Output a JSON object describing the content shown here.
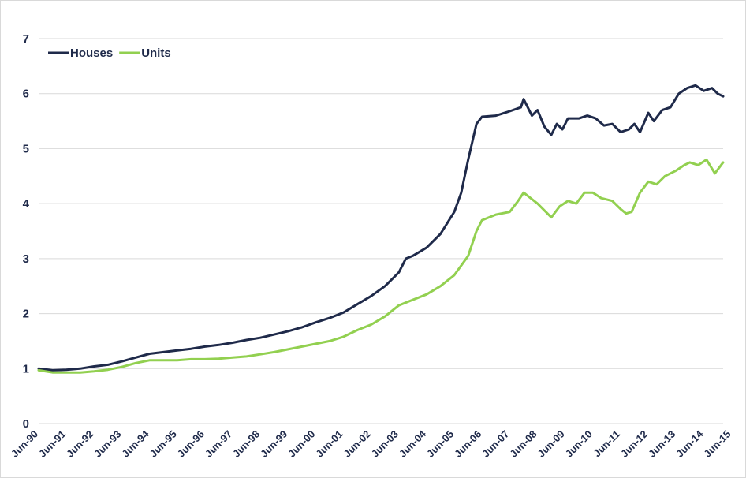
{
  "chart_data": {
    "type": "line",
    "title": "",
    "xlabel": "",
    "ylabel": "",
    "ylim": [
      0,
      7
    ],
    "y_ticks": [
      "0",
      "1",
      "2",
      "3",
      "4",
      "5",
      "6",
      "7"
    ],
    "x_ticks": [
      "Jun-90",
      "Jun-91",
      "Jun-92",
      "Jun-93",
      "Jun-94",
      "Jun-95",
      "Jun-96",
      "Jun-97",
      "Jun-98",
      "Jun-99",
      "Jun-00",
      "Jun-01",
      "Jun-02",
      "Jun-03",
      "Jun-04",
      "Jun-05",
      "Jun-06",
      "Jun-07",
      "Jun-08",
      "Jun-09",
      "Jun-10",
      "Jun-11",
      "Jun-12",
      "Jun-13",
      "Jun-14",
      "Jun-15"
    ],
    "grid": "horizontal",
    "legend_position": "top-left",
    "series": [
      {
        "name": "Houses",
        "color": "#1f2a4a",
        "points": [
          [
            1990.5,
            1.0
          ],
          [
            1991.0,
            0.97
          ],
          [
            1991.5,
            0.98
          ],
          [
            1992.0,
            1.0
          ],
          [
            1992.5,
            1.04
          ],
          [
            1993.0,
            1.07
          ],
          [
            1993.5,
            1.13
          ],
          [
            1994.0,
            1.2
          ],
          [
            1994.5,
            1.27
          ],
          [
            1995.0,
            1.3
          ],
          [
            1995.5,
            1.33
          ],
          [
            1996.0,
            1.36
          ],
          [
            1996.5,
            1.4
          ],
          [
            1997.0,
            1.43
          ],
          [
            1997.5,
            1.47
          ],
          [
            1998.0,
            1.52
          ],
          [
            1998.5,
            1.56
          ],
          [
            1999.0,
            1.62
          ],
          [
            1999.5,
            1.68
          ],
          [
            2000.0,
            1.75
          ],
          [
            2000.5,
            1.84
          ],
          [
            2001.0,
            1.92
          ],
          [
            2001.5,
            2.02
          ],
          [
            2002.0,
            2.17
          ],
          [
            2002.5,
            2.32
          ],
          [
            2003.0,
            2.5
          ],
          [
            2003.5,
            2.75
          ],
          [
            2003.75,
            3.0
          ],
          [
            2004.0,
            3.05
          ],
          [
            2004.5,
            3.2
          ],
          [
            2005.0,
            3.45
          ],
          [
            2005.5,
            3.85
          ],
          [
            2005.75,
            4.2
          ],
          [
            2006.0,
            4.8
          ],
          [
            2006.3,
            5.45
          ],
          [
            2006.5,
            5.58
          ],
          [
            2007.0,
            5.6
          ],
          [
            2007.5,
            5.68
          ],
          [
            2007.9,
            5.75
          ],
          [
            2008.0,
            5.9
          ],
          [
            2008.3,
            5.6
          ],
          [
            2008.5,
            5.7
          ],
          [
            2008.75,
            5.4
          ],
          [
            2009.0,
            5.25
          ],
          [
            2009.2,
            5.45
          ],
          [
            2009.4,
            5.35
          ],
          [
            2009.6,
            5.55
          ],
          [
            2010.0,
            5.55
          ],
          [
            2010.3,
            5.6
          ],
          [
            2010.6,
            5.55
          ],
          [
            2010.9,
            5.42
          ],
          [
            2011.2,
            5.45
          ],
          [
            2011.5,
            5.3
          ],
          [
            2011.8,
            5.35
          ],
          [
            2012.0,
            5.45
          ],
          [
            2012.2,
            5.3
          ],
          [
            2012.5,
            5.65
          ],
          [
            2012.7,
            5.5
          ],
          [
            2013.0,
            5.7
          ],
          [
            2013.3,
            5.75
          ],
          [
            2013.6,
            6.0
          ],
          [
            2013.9,
            6.1
          ],
          [
            2014.2,
            6.15
          ],
          [
            2014.5,
            6.05
          ],
          [
            2014.8,
            6.1
          ],
          [
            2015.0,
            6.0
          ],
          [
            2015.2,
            5.95
          ]
        ]
      },
      {
        "name": "Units",
        "color": "#92d050",
        "points": [
          [
            1990.5,
            0.97
          ],
          [
            1991.0,
            0.93
          ],
          [
            1991.5,
            0.93
          ],
          [
            1992.0,
            0.93
          ],
          [
            1992.5,
            0.95
          ],
          [
            1993.0,
            0.98
          ],
          [
            1993.5,
            1.03
          ],
          [
            1994.0,
            1.1
          ],
          [
            1994.5,
            1.15
          ],
          [
            1995.0,
            1.15
          ],
          [
            1995.5,
            1.15
          ],
          [
            1996.0,
            1.17
          ],
          [
            1996.5,
            1.17
          ],
          [
            1997.0,
            1.18
          ],
          [
            1997.5,
            1.2
          ],
          [
            1998.0,
            1.22
          ],
          [
            1998.5,
            1.26
          ],
          [
            1999.0,
            1.3
          ],
          [
            1999.5,
            1.35
          ],
          [
            2000.0,
            1.4
          ],
          [
            2000.5,
            1.45
          ],
          [
            2001.0,
            1.5
          ],
          [
            2001.5,
            1.58
          ],
          [
            2002.0,
            1.7
          ],
          [
            2002.5,
            1.8
          ],
          [
            2003.0,
            1.95
          ],
          [
            2003.5,
            2.15
          ],
          [
            2004.0,
            2.25
          ],
          [
            2004.5,
            2.35
          ],
          [
            2005.0,
            2.5
          ],
          [
            2005.5,
            2.7
          ],
          [
            2006.0,
            3.05
          ],
          [
            2006.3,
            3.5
          ],
          [
            2006.5,
            3.7
          ],
          [
            2007.0,
            3.8
          ],
          [
            2007.5,
            3.85
          ],
          [
            2007.8,
            4.05
          ],
          [
            2008.0,
            4.2
          ],
          [
            2008.5,
            4.0
          ],
          [
            2008.8,
            3.85
          ],
          [
            2009.0,
            3.75
          ],
          [
            2009.3,
            3.95
          ],
          [
            2009.6,
            4.05
          ],
          [
            2009.9,
            4.0
          ],
          [
            2010.2,
            4.2
          ],
          [
            2010.5,
            4.2
          ],
          [
            2010.8,
            4.1
          ],
          [
            2011.2,
            4.05
          ],
          [
            2011.5,
            3.9
          ],
          [
            2011.7,
            3.82
          ],
          [
            2011.9,
            3.85
          ],
          [
            2012.2,
            4.2
          ],
          [
            2012.5,
            4.4
          ],
          [
            2012.8,
            4.35
          ],
          [
            2013.1,
            4.5
          ],
          [
            2013.5,
            4.6
          ],
          [
            2013.8,
            4.7
          ],
          [
            2014.0,
            4.75
          ],
          [
            2014.3,
            4.7
          ],
          [
            2014.6,
            4.8
          ],
          [
            2014.9,
            4.55
          ],
          [
            2015.2,
            4.75
          ]
        ]
      }
    ]
  }
}
